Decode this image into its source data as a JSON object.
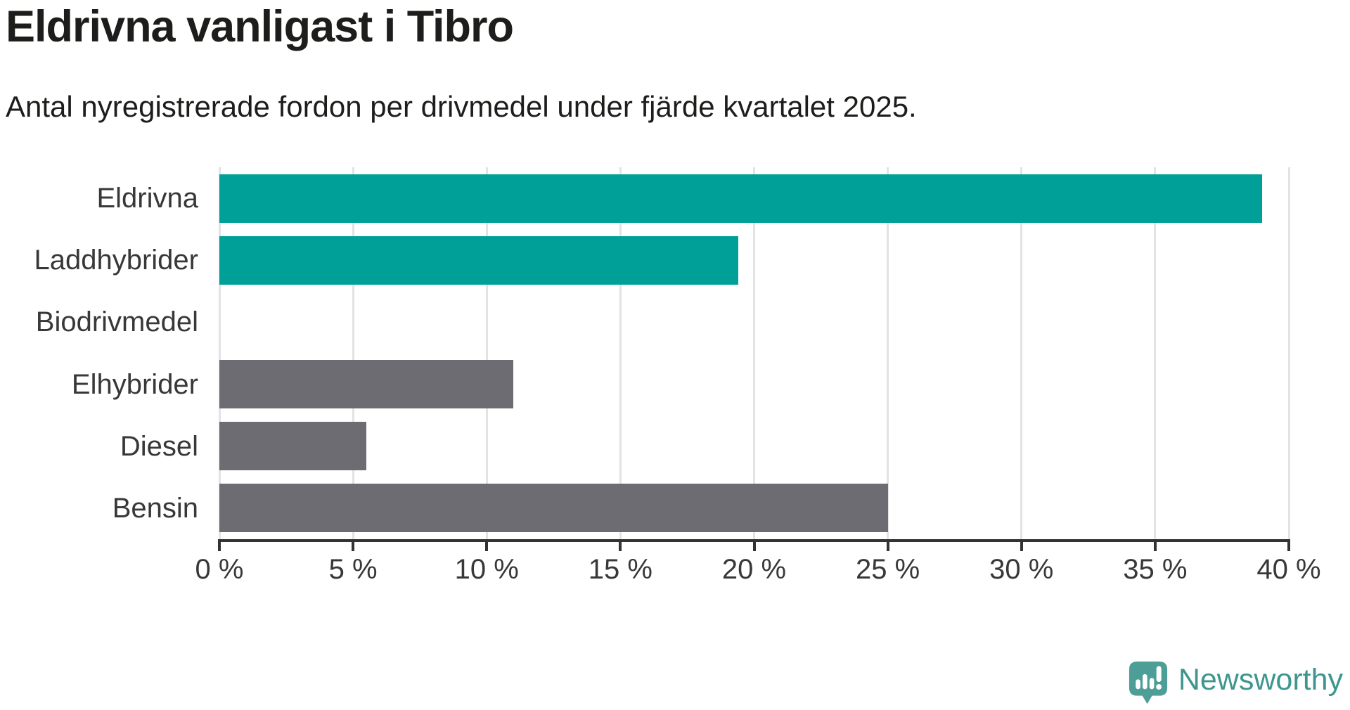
{
  "header": {
    "title": "Eldrivna vanligast i Tibro",
    "subtitle": "Antal nyregistrerade fordon per drivmedel under fjärde kvartalet 2025."
  },
  "chart_data": {
    "type": "bar",
    "orientation": "horizontal",
    "title": "Eldrivna vanligast i Tibro",
    "subtitle": "Antal nyregistrerade fordon per drivmedel under fjärde kvartalet 2025.",
    "categories": [
      "Eldrivna",
      "Laddhybrider",
      "Biodrivmedel",
      "Elhybrider",
      "Diesel",
      "Bensin"
    ],
    "values": [
      39,
      19.4,
      0,
      11,
      5.5,
      25
    ],
    "unit": "%",
    "bar_colors": [
      "#00a099",
      "#00a099",
      "#00a099",
      "#6d6c72",
      "#6d6c72",
      "#6d6c72"
    ],
    "highlight_color": "#00a099",
    "default_color": "#6d6c72",
    "xlabel": "",
    "ylabel": "",
    "xlim": [
      0,
      40
    ],
    "x_ticks": [
      0,
      5,
      10,
      15,
      20,
      25,
      30,
      35,
      40
    ],
    "x_tick_labels": [
      "0 %",
      "5 %",
      "10 %",
      "15 %",
      "20 %",
      "25 %",
      "30 %",
      "35 %",
      "40 %"
    ],
    "grid": "vertical-gridlines-on",
    "legend": "none"
  },
  "branding": {
    "logo_text": "Newsworthy",
    "logo_text_color": "#3e968f",
    "icon_color": "#4d9e97",
    "icon": "newsworthy-speech-bubble-bar-chart-icon"
  },
  "colors": {
    "background": "#ffffff",
    "teal_bar": "#00a099",
    "gray_bar": "#6d6c72",
    "gridline": "#e3e3e3",
    "axis": "#333333",
    "title_text": "#1d1d1b",
    "label_text": "#383838"
  }
}
